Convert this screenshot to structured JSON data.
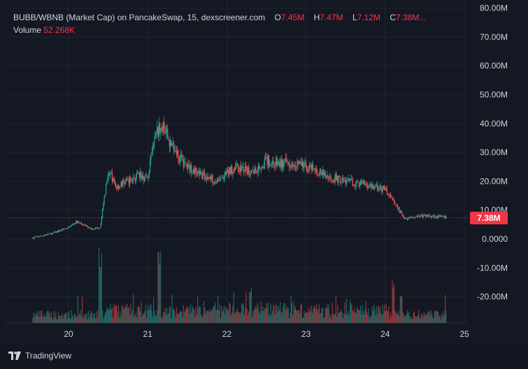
{
  "legend": {
    "symbol": "BUBB/WBNB (Market Cap) on PancakeSwap, 15, dexscreener.com",
    "o_label": "O",
    "o_value": "7.45M",
    "h_label": "H",
    "h_value": "7.47M",
    "l_label": "L",
    "l_value": "7.12M",
    "c_label": "C",
    "c_value": "7.38M...",
    "volume_label": "Volume",
    "volume_value": "52.268K"
  },
  "current_price_label": "7.38M",
  "branding": {
    "name": "TradingView"
  },
  "colors": {
    "up": "#26a69a",
    "down": "#ef5350",
    "background": "#141823",
    "grid": "#1f2430",
    "price_line": "#f23645"
  },
  "chart_data": {
    "type": "candlestick",
    "y_axis": {
      "ticks": [
        "80.00M",
        "70.00M",
        "60.00M",
        "50.00M",
        "40.00M",
        "30.00M",
        "20.00M",
        "10.00M",
        "0.0000",
        "-10.00M",
        "-20.00M"
      ],
      "tick_values": [
        80,
        70,
        60,
        50,
        40,
        30,
        20,
        10,
        0,
        -10,
        -20
      ],
      "unit": "M"
    },
    "x_axis": {
      "ticks": [
        "20",
        "21",
        "22",
        "23",
        "24",
        "25"
      ],
      "tick_positions": [
        20,
        21,
        22,
        23,
        24,
        25
      ]
    },
    "time_range": [
      19.55,
      24.78
    ],
    "current_value": 7.38,
    "price_path": [
      [
        19.55,
        0.4
      ],
      [
        19.8,
        2.0
      ],
      [
        20.0,
        4.0
      ],
      [
        20.1,
        6.0
      ],
      [
        20.3,
        3.5
      ],
      [
        20.4,
        4.0
      ],
      [
        20.45,
        14.0
      ],
      [
        20.5,
        24.0
      ],
      [
        20.6,
        18.0
      ],
      [
        20.75,
        20.0
      ],
      [
        20.9,
        22.0
      ],
      [
        21.0,
        21.0
      ],
      [
        21.1,
        37.0
      ],
      [
        21.2,
        38.0
      ],
      [
        21.35,
        30.0
      ],
      [
        21.5,
        25.0
      ],
      [
        21.7,
        22.0
      ],
      [
        21.9,
        20.0
      ],
      [
        22.1,
        25.0
      ],
      [
        22.3,
        23.0
      ],
      [
        22.5,
        27.0
      ],
      [
        22.7,
        26.0
      ],
      [
        22.85,
        27.0
      ],
      [
        23.0,
        25.0
      ],
      [
        23.25,
        22.0
      ],
      [
        23.5,
        20.0
      ],
      [
        23.75,
        19.0
      ],
      [
        24.0,
        17.0
      ],
      [
        24.1,
        13.0
      ],
      [
        24.25,
        7.0
      ],
      [
        24.4,
        8.0
      ],
      [
        24.6,
        8.0
      ],
      [
        24.78,
        7.4
      ]
    ],
    "volume_spikes": [
      [
        20.4,
        0.95
      ],
      [
        21.15,
        0.97
      ],
      [
        22.3,
        0.5
      ],
      [
        24.1,
        0.55
      ],
      [
        24.2,
        0.45
      ]
    ]
  }
}
